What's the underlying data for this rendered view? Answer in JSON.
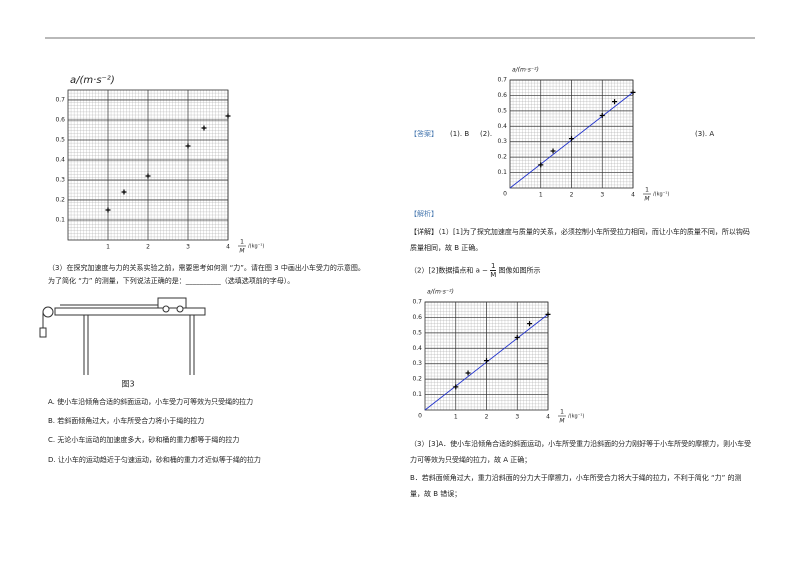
{
  "left": {
    "plot": {
      "ylabel": "a/(m·s⁻²)",
      "xlabel_num": "1",
      "xlabel_den": "M",
      "xlabel_unit": "/(kg⁻¹)",
      "xlim": [
        0,
        4
      ],
      "ylim": [
        0,
        0.75
      ],
      "xticks": [
        1,
        2,
        3,
        4
      ],
      "yticks": [
        0.1,
        0.2,
        0.3,
        0.4,
        0.5,
        0.6,
        0.7
      ],
      "points": {
        "x": [
          1.0,
          1.4,
          2.0,
          3.0,
          3.4,
          4.0
        ],
        "y": [
          0.15,
          0.24,
          0.32,
          0.47,
          0.56,
          0.62
        ]
      }
    },
    "question3": "（3）在探究加速度与力的关系实验之前，需要思考如何测 “力”。请在图 3 中画出小车受力的示意图。为了简化 “力” 的测量，下列说法正确的是：__________（选填选项前的字母）。",
    "figure_caption": "图3",
    "options": [
      "A. 使小车沿倾角合适的斜面运动，小车受力可等效为只受绳的拉力",
      "B. 若斜面倾角过大，小车所受合力将小于绳的拉力",
      "C. 无论小车运动的加速度多大，砂和桶的重力都等于绳的拉力",
      "D. 让小车的运动趋近于匀速运动，砂和桶的重力才近似等于绳的拉力"
    ]
  },
  "right": {
    "answer_tag": "【答案】",
    "answer1": "(1). B",
    "answer2": "(2).",
    "answer3": "(3). A",
    "plot_top": {
      "ylabel": "a/(m·s⁻²)",
      "xlabel_num": "1",
      "xlabel_den": "M",
      "xlabel_unit": "/(kg⁻¹)",
      "origin": "0",
      "xlim": [
        0,
        4
      ],
      "ylim": [
        0,
        0.7
      ],
      "xticks": [
        1,
        2,
        3,
        4
      ],
      "yticks": [
        0.1,
        0.2,
        0.3,
        0.4,
        0.5,
        0.6,
        0.7
      ],
      "points": {
        "x": [
          1.0,
          1.4,
          2.0,
          3.0,
          3.4,
          4.0
        ],
        "y": [
          0.15,
          0.24,
          0.32,
          0.47,
          0.56,
          0.62
        ]
      },
      "fit": {
        "x": [
          0,
          4
        ],
        "y": [
          0,
          0.62
        ]
      }
    },
    "analysis_tag": "【解析】",
    "detail1": "【详解】（1）[1]为了探究加速度与质量的关系，必须控制小车所受拉力相同，而让小车的质量不同，所以钩码质量相同，故 B 正确。",
    "detail2": {
      "before": "（2）[2]数据描点和 a −",
      "num": "1",
      "den": "M",
      "after": "图像如图所示"
    },
    "plot_bottom": {
      "ylabel": "a/(m·s⁻²)",
      "xlabel_num": "1",
      "xlabel_den": "M",
      "xlabel_unit": "/(kg⁻¹)",
      "origin": "0",
      "xlim": [
        0,
        4
      ],
      "ylim": [
        0,
        0.7
      ],
      "xticks": [
        1,
        2,
        3,
        4
      ],
      "yticks": [
        0.1,
        0.2,
        0.3,
        0.4,
        0.5,
        0.6,
        0.7
      ],
      "points": {
        "x": [
          1.0,
          1.4,
          2.0,
          3.0,
          3.4,
          4.0
        ],
        "y": [
          0.15,
          0.24,
          0.32,
          0.47,
          0.56,
          0.62
        ]
      },
      "fit": {
        "x": [
          0,
          4
        ],
        "y": [
          0,
          0.62
        ]
      }
    },
    "detail3": "（3）[3]A．使小车沿倾角合适的斜面运动，小车所受重力沿斜面的分力刚好等于小车所受的摩擦力，则小车受力可等效为只受绳的拉力，故 A 正确；",
    "detail4": "B．若斜面倾角过大，重力沿斜面的分力大于摩擦力，小车所受合力将大于绳的拉力，不利于简化 “力” 的测量，故 B 错误；"
  }
}
